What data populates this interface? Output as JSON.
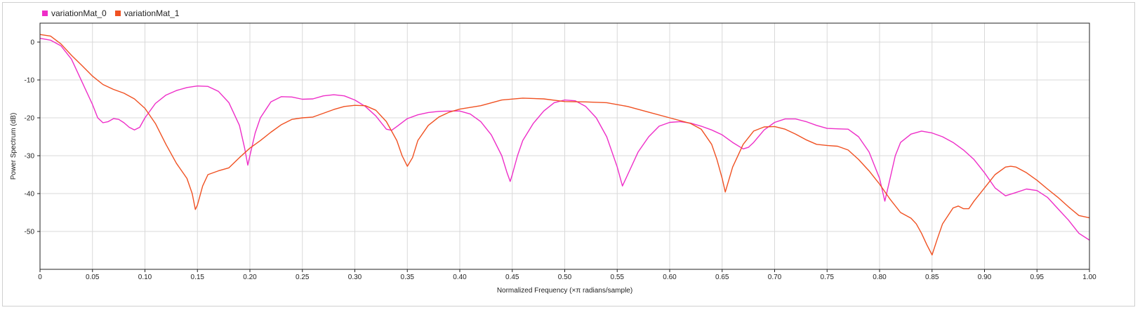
{
  "chart_data": {
    "type": "line",
    "xlabel": "Normalized Frequency (×π radians/sample)",
    "ylabel": "Power Spectrum (dB)",
    "xlim": [
      0,
      1
    ],
    "ylim": [
      -60,
      5
    ],
    "xticks": [
      "0",
      "0.05",
      "0.10",
      "0.15",
      "0.20",
      "0.25",
      "0.30",
      "0.35",
      "0.40",
      "0.45",
      "0.50",
      "0.55",
      "0.60",
      "0.65",
      "0.70",
      "0.75",
      "0.80",
      "0.85",
      "0.90",
      "0.95",
      "1.00"
    ],
    "yticks": [
      "0",
      "-10",
      "-20",
      "-30",
      "-40",
      "-50"
    ],
    "grid": true,
    "legend_position": "top-left",
    "series": [
      {
        "name": "variationMat_0",
        "color": "#ee2ec8",
        "points": [
          [
            0,
            1
          ],
          [
            0.01,
            0.5
          ],
          [
            0.02,
            -1
          ],
          [
            0.03,
            -4.5
          ],
          [
            0.04,
            -10.5
          ],
          [
            0.05,
            -16.5
          ],
          [
            0.055,
            -20
          ],
          [
            0.06,
            -21.3
          ],
          [
            0.065,
            -21
          ],
          [
            0.07,
            -20.2
          ],
          [
            0.075,
            -20.4
          ],
          [
            0.08,
            -21.3
          ],
          [
            0.085,
            -22.5
          ],
          [
            0.09,
            -23.2
          ],
          [
            0.095,
            -22.5
          ],
          [
            0.1,
            -20
          ],
          [
            0.11,
            -16.2
          ],
          [
            0.12,
            -14
          ],
          [
            0.13,
            -12.8
          ],
          [
            0.14,
            -12
          ],
          [
            0.15,
            -11.6
          ],
          [
            0.16,
            -11.7
          ],
          [
            0.17,
            -13
          ],
          [
            0.18,
            -16
          ],
          [
            0.19,
            -22
          ],
          [
            0.195,
            -28
          ],
          [
            0.198,
            -32.5
          ],
          [
            0.2,
            -30
          ],
          [
            0.205,
            -24
          ],
          [
            0.21,
            -20
          ],
          [
            0.22,
            -15.8
          ],
          [
            0.23,
            -14.4
          ],
          [
            0.24,
            -14.5
          ],
          [
            0.25,
            -15.1
          ],
          [
            0.26,
            -15
          ],
          [
            0.27,
            -14.2
          ],
          [
            0.28,
            -13.9
          ],
          [
            0.29,
            -14.2
          ],
          [
            0.3,
            -15.3
          ],
          [
            0.31,
            -17
          ],
          [
            0.32,
            -19.5
          ],
          [
            0.33,
            -23
          ],
          [
            0.335,
            -23.3
          ],
          [
            0.34,
            -22.3
          ],
          [
            0.35,
            -20.2
          ],
          [
            0.36,
            -19.2
          ],
          [
            0.37,
            -18.6
          ],
          [
            0.38,
            -18.3
          ],
          [
            0.39,
            -18.2
          ],
          [
            0.4,
            -18.2
          ],
          [
            0.41,
            -19
          ],
          [
            0.42,
            -21
          ],
          [
            0.43,
            -24.5
          ],
          [
            0.44,
            -30
          ],
          [
            0.445,
            -34.5
          ],
          [
            0.448,
            -36.8
          ],
          [
            0.45,
            -35
          ],
          [
            0.455,
            -30
          ],
          [
            0.46,
            -26
          ],
          [
            0.47,
            -21.5
          ],
          [
            0.48,
            -18.2
          ],
          [
            0.49,
            -16
          ],
          [
            0.5,
            -15.3
          ],
          [
            0.51,
            -15.5
          ],
          [
            0.52,
            -17
          ],
          [
            0.53,
            -20
          ],
          [
            0.54,
            -25
          ],
          [
            0.55,
            -33
          ],
          [
            0.555,
            -38
          ],
          [
            0.56,
            -35
          ],
          [
            0.57,
            -29
          ],
          [
            0.58,
            -25
          ],
          [
            0.59,
            -22.2
          ],
          [
            0.6,
            -21.2
          ],
          [
            0.61,
            -21
          ],
          [
            0.62,
            -21.4
          ],
          [
            0.63,
            -22.2
          ],
          [
            0.64,
            -23.2
          ],
          [
            0.65,
            -24.5
          ],
          [
            0.66,
            -26.5
          ],
          [
            0.67,
            -28.2
          ],
          [
            0.675,
            -27.8
          ],
          [
            0.68,
            -26.5
          ],
          [
            0.69,
            -23.2
          ],
          [
            0.7,
            -21.2
          ],
          [
            0.71,
            -20.3
          ],
          [
            0.72,
            -20.3
          ],
          [
            0.73,
            -21
          ],
          [
            0.74,
            -22
          ],
          [
            0.75,
            -22.8
          ],
          [
            0.76,
            -22.9
          ],
          [
            0.77,
            -23
          ],
          [
            0.78,
            -25
          ],
          [
            0.79,
            -29
          ],
          [
            0.8,
            -36
          ],
          [
            0.805,
            -42
          ],
          [
            0.81,
            -36
          ],
          [
            0.815,
            -30
          ],
          [
            0.82,
            -26.5
          ],
          [
            0.83,
            -24.3
          ],
          [
            0.84,
            -23.5
          ],
          [
            0.85,
            -24
          ],
          [
            0.86,
            -25
          ],
          [
            0.87,
            -26.5
          ],
          [
            0.88,
            -28.5
          ],
          [
            0.89,
            -31
          ],
          [
            0.9,
            -34.5
          ],
          [
            0.91,
            -38.5
          ],
          [
            0.92,
            -40.6
          ],
          [
            0.93,
            -39.7
          ],
          [
            0.94,
            -38.8
          ],
          [
            0.95,
            -39.2
          ],
          [
            0.96,
            -41
          ],
          [
            0.97,
            -44
          ],
          [
            0.98,
            -47
          ],
          [
            0.99,
            -50.5
          ],
          [
            1,
            -52.3
          ]
        ]
      },
      {
        "name": "variationMat_1",
        "color": "#f05122",
        "points": [
          [
            0,
            2
          ],
          [
            0.01,
            1.6
          ],
          [
            0.02,
            -0.5
          ],
          [
            0.03,
            -3.5
          ],
          [
            0.04,
            -6.2
          ],
          [
            0.05,
            -9
          ],
          [
            0.06,
            -11.2
          ],
          [
            0.07,
            -12.5
          ],
          [
            0.08,
            -13.5
          ],
          [
            0.09,
            -15
          ],
          [
            0.1,
            -17.5
          ],
          [
            0.11,
            -21.5
          ],
          [
            0.12,
            -27
          ],
          [
            0.13,
            -32
          ],
          [
            0.14,
            -36
          ],
          [
            0.145,
            -40
          ],
          [
            0.148,
            -44.2
          ],
          [
            0.15,
            -43
          ],
          [
            0.155,
            -38
          ],
          [
            0.16,
            -35
          ],
          [
            0.17,
            -34
          ],
          [
            0.18,
            -33.2
          ],
          [
            0.19,
            -30.5
          ],
          [
            0.2,
            -28
          ],
          [
            0.21,
            -26
          ],
          [
            0.22,
            -23.8
          ],
          [
            0.23,
            -21.8
          ],
          [
            0.24,
            -20.4
          ],
          [
            0.25,
            -20
          ],
          [
            0.26,
            -19.8
          ],
          [
            0.27,
            -18.8
          ],
          [
            0.28,
            -17.8
          ],
          [
            0.29,
            -17
          ],
          [
            0.3,
            -16.7
          ],
          [
            0.31,
            -16.8
          ],
          [
            0.32,
            -18
          ],
          [
            0.33,
            -21
          ],
          [
            0.34,
            -26
          ],
          [
            0.345,
            -30
          ],
          [
            0.35,
            -32.8
          ],
          [
            0.355,
            -30.5
          ],
          [
            0.36,
            -26
          ],
          [
            0.37,
            -22
          ],
          [
            0.38,
            -19.8
          ],
          [
            0.39,
            -18.5
          ],
          [
            0.4,
            -17.7
          ],
          [
            0.42,
            -16.8
          ],
          [
            0.44,
            -15.3
          ],
          [
            0.46,
            -14.8
          ],
          [
            0.48,
            -15
          ],
          [
            0.5,
            -15.7
          ],
          [
            0.52,
            -15.8
          ],
          [
            0.54,
            -16
          ],
          [
            0.56,
            -17
          ],
          [
            0.58,
            -18.5
          ],
          [
            0.6,
            -20
          ],
          [
            0.62,
            -21.5
          ],
          [
            0.63,
            -23
          ],
          [
            0.64,
            -27
          ],
          [
            0.645,
            -31
          ],
          [
            0.65,
            -36
          ],
          [
            0.653,
            -39.6
          ],
          [
            0.66,
            -33
          ],
          [
            0.67,
            -27
          ],
          [
            0.68,
            -23.5
          ],
          [
            0.69,
            -22.4
          ],
          [
            0.7,
            -22.3
          ],
          [
            0.71,
            -23
          ],
          [
            0.72,
            -24.3
          ],
          [
            0.73,
            -25.8
          ],
          [
            0.74,
            -27
          ],
          [
            0.75,
            -27.3
          ],
          [
            0.76,
            -27.5
          ],
          [
            0.77,
            -28.5
          ],
          [
            0.78,
            -31
          ],
          [
            0.79,
            -34
          ],
          [
            0.8,
            -37.5
          ],
          [
            0.81,
            -41.5
          ],
          [
            0.82,
            -45
          ],
          [
            0.83,
            -46.5
          ],
          [
            0.835,
            -48
          ],
          [
            0.84,
            -50.5
          ],
          [
            0.845,
            -53.5
          ],
          [
            0.85,
            -56.2
          ],
          [
            0.855,
            -52
          ],
          [
            0.86,
            -48
          ],
          [
            0.87,
            -43.8
          ],
          [
            0.875,
            -43.3
          ],
          [
            0.88,
            -44
          ],
          [
            0.885,
            -44
          ],
          [
            0.89,
            -42
          ],
          [
            0.9,
            -38.5
          ],
          [
            0.91,
            -35
          ],
          [
            0.92,
            -33
          ],
          [
            0.925,
            -32.8
          ],
          [
            0.93,
            -33
          ],
          [
            0.94,
            -34.5
          ],
          [
            0.95,
            -36.5
          ],
          [
            0.96,
            -38.8
          ],
          [
            0.97,
            -41
          ],
          [
            0.98,
            -43.5
          ],
          [
            0.99,
            -45.8
          ],
          [
            1,
            -46.4
          ]
        ]
      }
    ]
  }
}
